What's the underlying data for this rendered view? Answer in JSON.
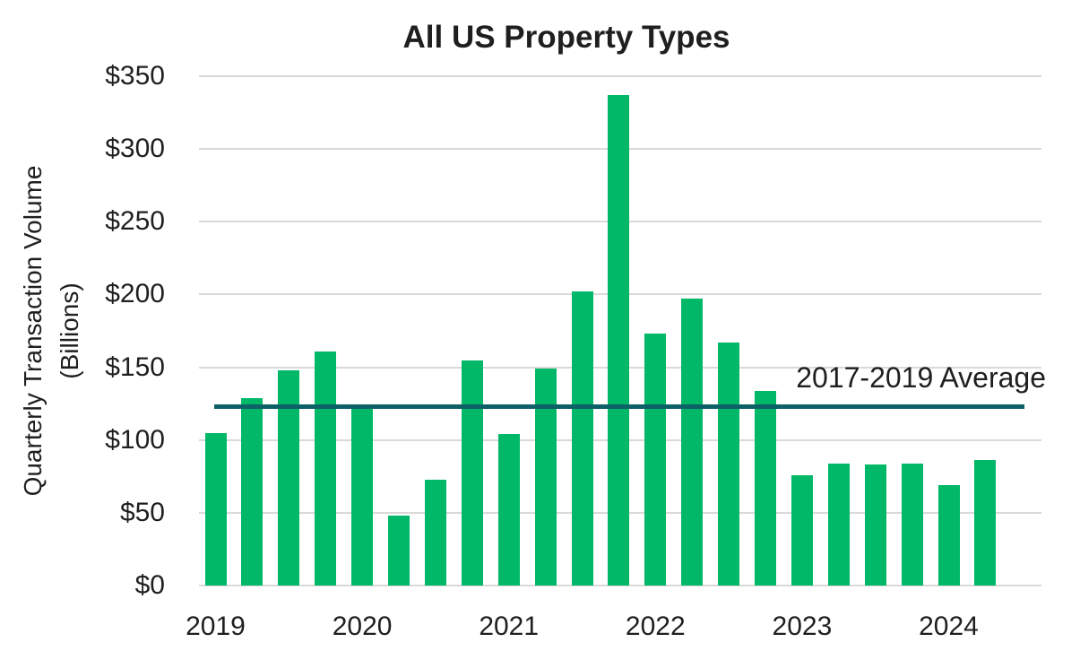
{
  "title": "All US Property Types",
  "y_axis": {
    "title_line1": "Quarterly Transaction Volume",
    "title_line2": "(Billions)",
    "ticks": [
      "$0",
      "$50",
      "$100",
      "$150",
      "$200",
      "$250",
      "$300",
      "$350"
    ],
    "min": 0,
    "max": 350,
    "step": 50
  },
  "x_axis": {
    "year_labels": [
      "2019",
      "2020",
      "2021",
      "2022",
      "2023",
      "2024"
    ]
  },
  "average_line": {
    "label": "2017-2019 Average",
    "value": 123
  },
  "colors": {
    "bar": "#00B868",
    "average_line": "#0C6066",
    "gridline": "#D9D9D9",
    "text": "#1F1F1F"
  },
  "chart_data": {
    "type": "bar",
    "title": "All US Property Types",
    "xlabel": "",
    "ylabel": "Quarterly Transaction Volume (Billions)",
    "ylim": [
      0,
      350
    ],
    "grid": "horizontal",
    "legend": "none",
    "x": [
      "2019 Q1",
      "2019 Q2",
      "2019 Q3",
      "2019 Q4",
      "2020 Q1",
      "2020 Q2",
      "2020 Q3",
      "2020 Q4",
      "2021 Q1",
      "2021 Q2",
      "2021 Q3",
      "2021 Q4",
      "2022 Q1",
      "2022 Q2",
      "2022 Q3",
      "2022 Q4",
      "2023 Q1",
      "2023 Q2",
      "2023 Q3",
      "2023 Q4",
      "2024 Q1",
      "2024 Q2"
    ],
    "values": [
      105,
      129,
      148,
      161,
      122,
      48,
      73,
      155,
      104,
      149,
      202,
      337,
      173,
      197,
      167,
      134,
      76,
      84,
      83,
      84,
      69,
      86
    ],
    "reference_line": {
      "label": "2017-2019 Average",
      "value": 123
    }
  }
}
